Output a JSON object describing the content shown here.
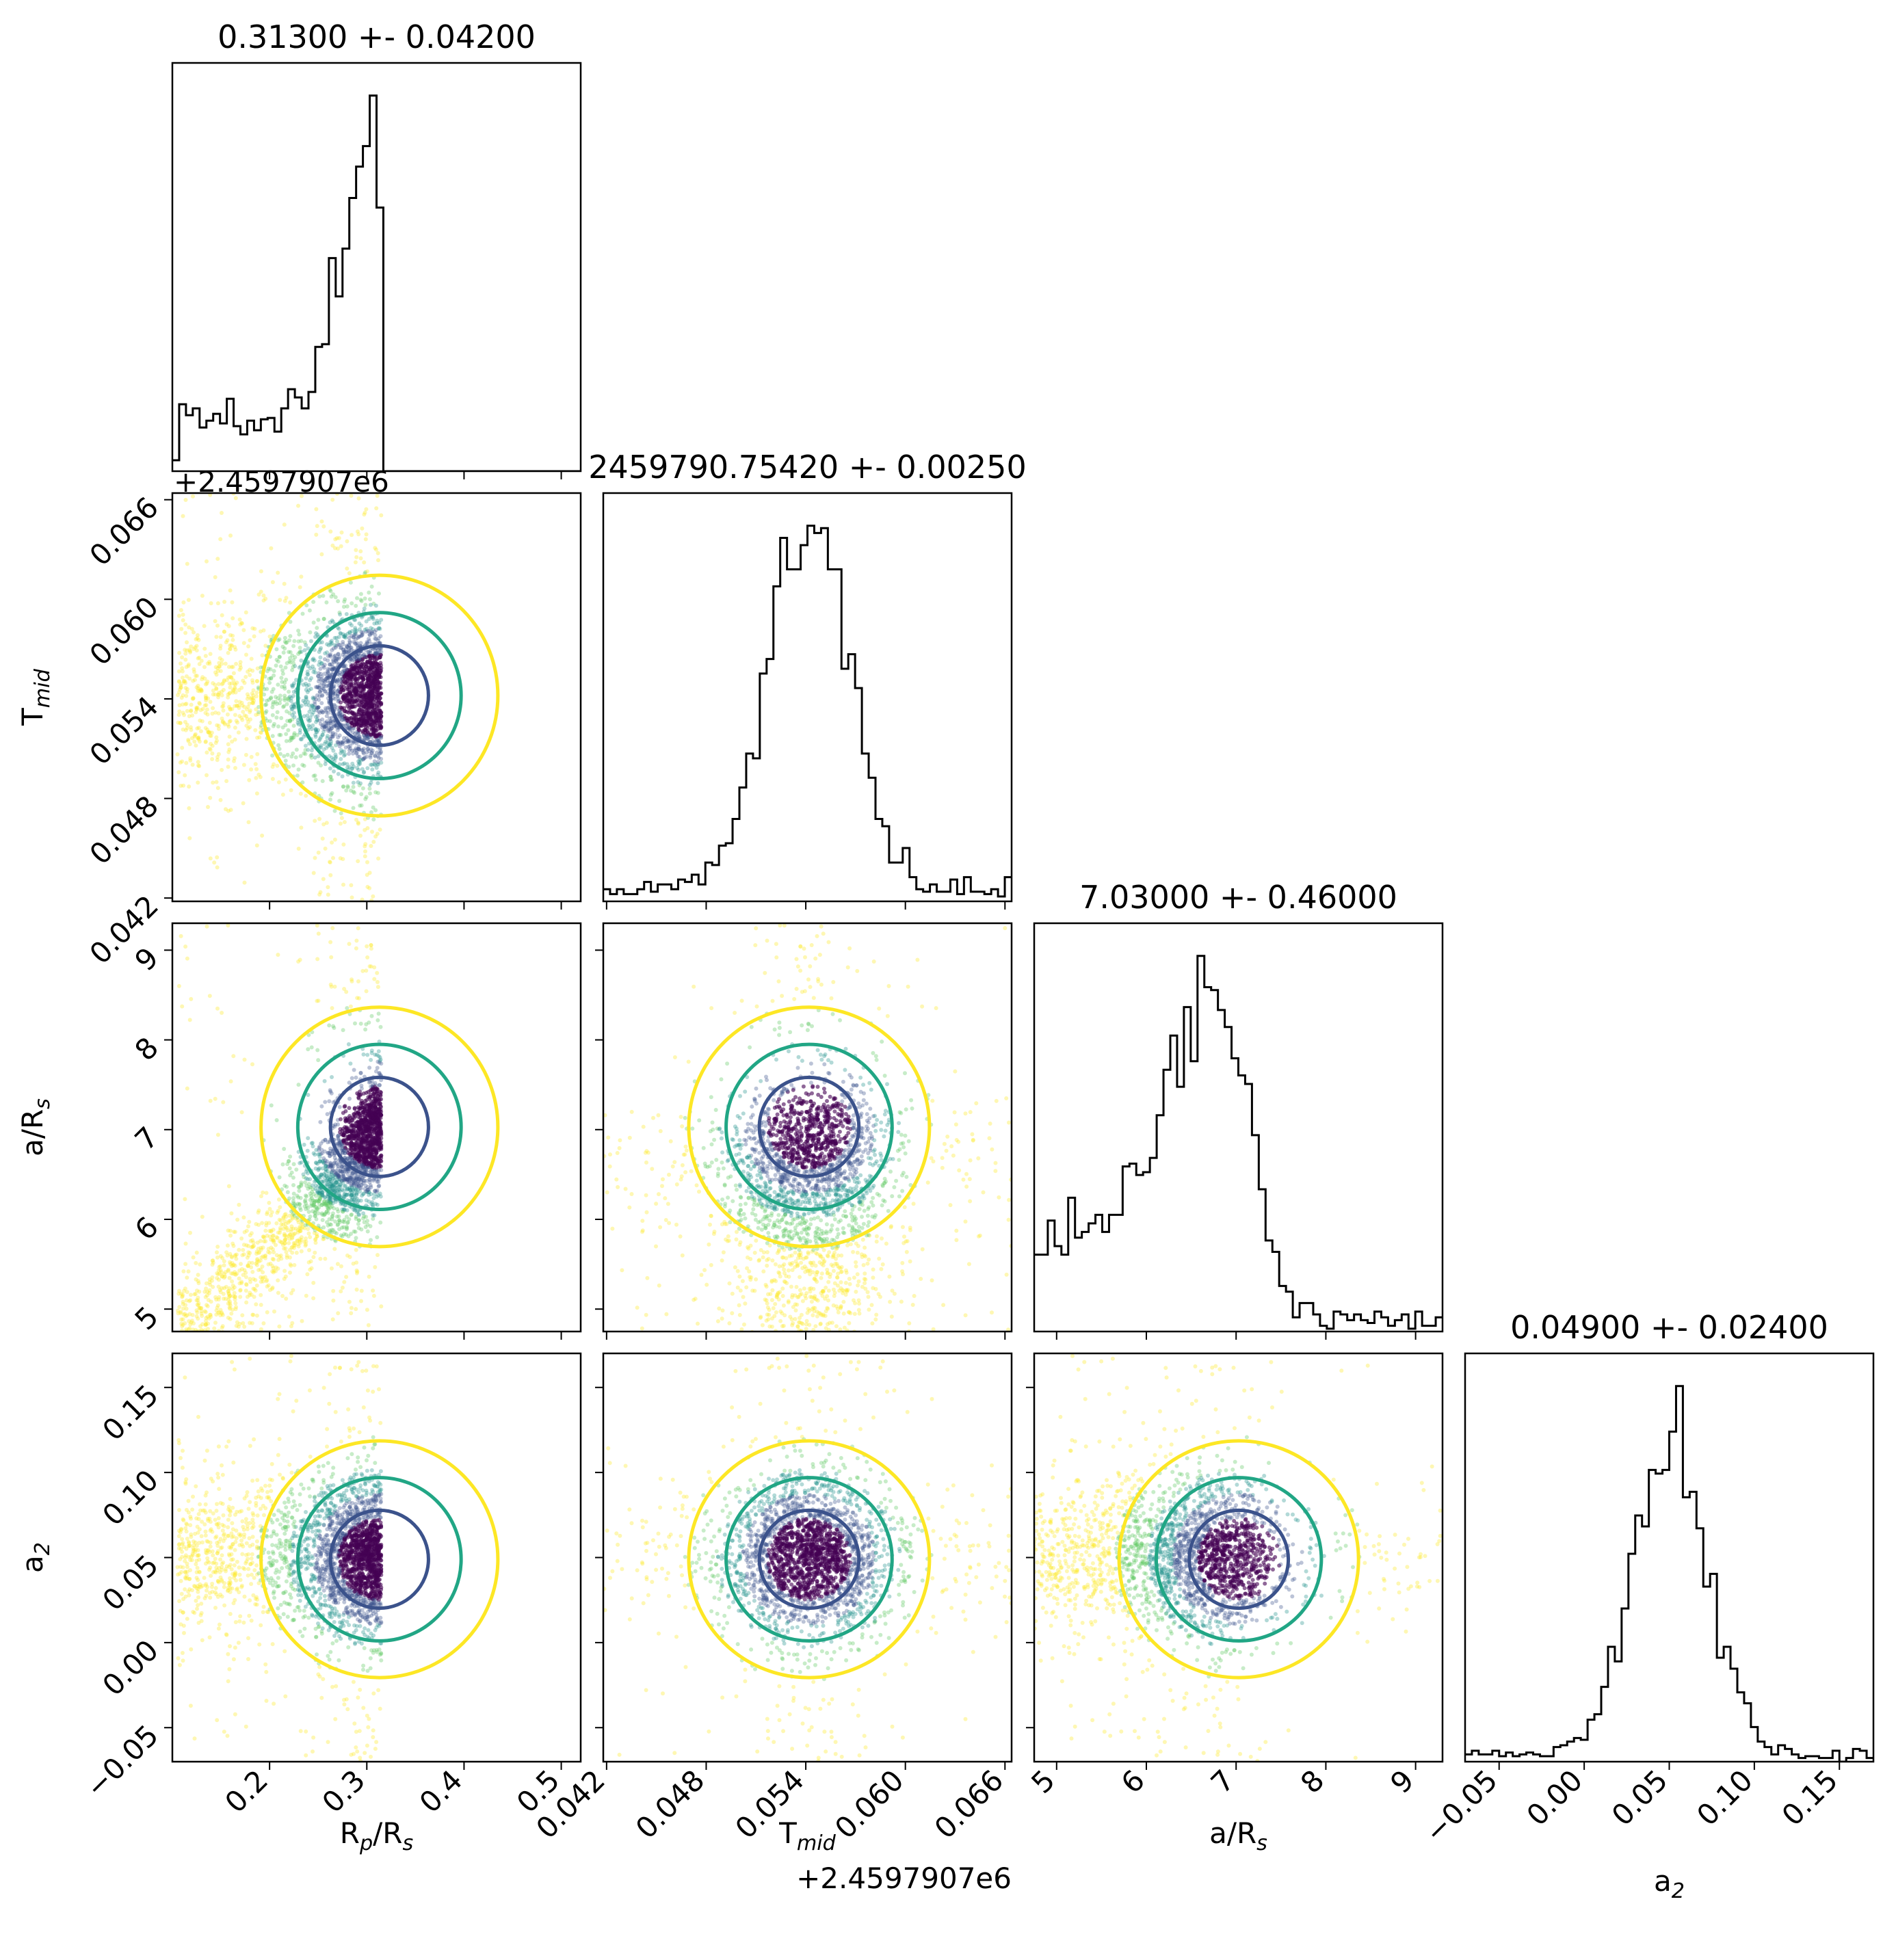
{
  "chart_data": {
    "type": "corner",
    "parameters": [
      {
        "key": "rp",
        "label": "R_p/R_s",
        "title": "0.31300 +- 0.04200",
        "median": 0.313,
        "sigma": 0.042,
        "range": [
          0.1,
          0.52
        ],
        "ticks": [
          0.2,
          0.3,
          0.4,
          0.5
        ],
        "tick_labels": [
          "0.2",
          "0.3",
          "0.4",
          "0.5"
        ],
        "offset_label": ""
      },
      {
        "key": "tmid",
        "label": "T_mid",
        "title": "2459790.75420 +- 0.00250",
        "median": 0.0542,
        "sigma": 0.0025,
        "range": [
          0.0418,
          0.0664
        ],
        "ticks": [
          0.042,
          0.048,
          0.054,
          0.06,
          0.066
        ],
        "tick_labels": [
          "0.042",
          "0.048",
          "0.054",
          "0.060",
          "0.066"
        ],
        "offset_label": "+2.4597907e6"
      },
      {
        "key": "ars",
        "label": "a/R_s",
        "title": "7.03000 +- 0.46000",
        "median": 7.03,
        "sigma": 0.46,
        "range": [
          4.75,
          9.3
        ],
        "ticks": [
          5,
          6,
          7,
          8,
          9
        ],
        "tick_labels": [
          "5",
          "6",
          "7",
          "8",
          "9"
        ],
        "offset_label": ""
      },
      {
        "key": "a2",
        "label": "a_2",
        "title": "0.04900 +- 0.02400",
        "median": 0.049,
        "sigma": 0.024,
        "range": [
          -0.07,
          0.17
        ],
        "ticks": [
          -0.05,
          0.0,
          0.05,
          0.1,
          0.15
        ],
        "tick_labels": [
          "−0.05",
          "0.00",
          "0.05",
          "0.10",
          "0.15"
        ],
        "offset_label": ""
      }
    ],
    "contour_colors": [
      "#3b528b",
      "#21a685",
      "#fde725"
    ],
    "scatter_colors": [
      "#440154",
      "#3b528b",
      "#21918c",
      "#5ec962",
      "#fde725"
    ],
    "histogram_color": "#000000"
  }
}
